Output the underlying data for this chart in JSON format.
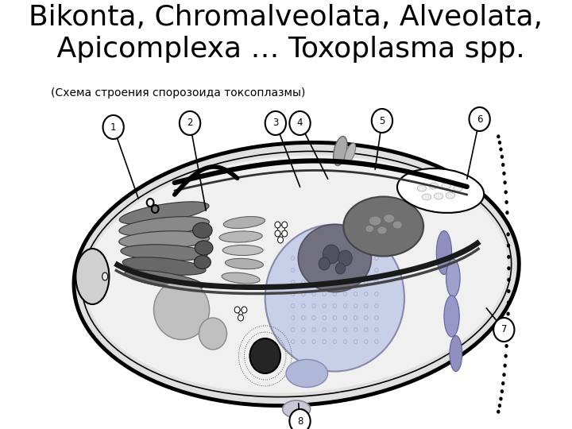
{
  "title_line1": "Bikonta, Chromalveolata, Alveolata,",
  "title_line2": " Apicomplexa … Toxoplasma spp.",
  "subtitle": "(Схема строения спорозоида токсоплазмы)",
  "bg_color": "#ffffff",
  "cell_bg": "#dcdcdc",
  "title_fontsize": 26,
  "subtitle_fontsize": 10,
  "label_fontsize": 9
}
